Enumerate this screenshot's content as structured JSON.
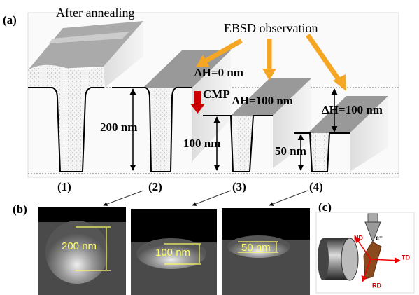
{
  "panel_a": {
    "label": "(a)",
    "title_left": "After annealing",
    "title_right": "EBSD observation",
    "step_labels": [
      "(1)",
      "(2)",
      "(3)",
      "(4)"
    ],
    "cmp": "CMP",
    "delta_h": [
      "ΔH=0 nm",
      "ΔH=100 nm",
      "ΔH=100 nm"
    ],
    "depths": [
      "200 nm",
      "100 nm",
      "50 nm"
    ]
  },
  "panel_b": {
    "label": "(b)",
    "scales": [
      "200 nm",
      "100 nm",
      "50 nm"
    ]
  },
  "panel_c": {
    "label": "(c)",
    "nd": "ND",
    "td": "TD",
    "rd": "RD",
    "beam": "e⁻"
  }
}
